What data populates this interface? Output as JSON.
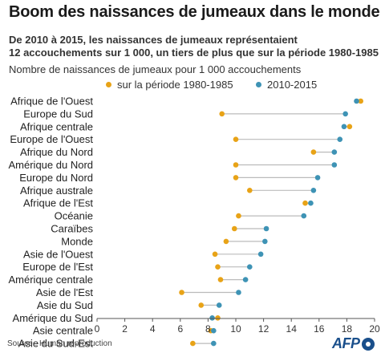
{
  "header": {
    "title": "Boom des naissances de jumeaux dans le monde",
    "subtitle_line1": "De 2010 à 2015, les naissances de jumeaux représentaient",
    "subtitle_line2": "12 accouchements sur 1 000, un tiers de plus que sur la période 1980-1985",
    "axis_caption": "Nombre de naissances de jumeaux pour 1 000 accouchements"
  },
  "legend": {
    "series_1980": "sur la période 1980-1985",
    "series_2010": "2010-2015"
  },
  "colors": {
    "series_1980": "#e8a317",
    "series_2010": "#3e93b5",
    "connector": "#bbbbbb",
    "axis": "#555555",
    "gridline": "#d8d8d8"
  },
  "footer": {
    "source": "Source : Human reproduction",
    "logo": "AFP"
  },
  "chart_data": {
    "type": "dumbbell",
    "title": "Boom des naissances de jumeaux dans le monde",
    "xlabel": "Nombre de naissances de jumeaux pour 1 000 accouchements",
    "xlim": [
      0,
      20
    ],
    "xticks": [
      0,
      2,
      4,
      6,
      8,
      10,
      12,
      14,
      16,
      18,
      20
    ],
    "legend_position": "top",
    "grid": false,
    "categories": [
      "Afrique de l'Ouest",
      "Europe du Sud",
      "Afrique centrale",
      "Europe de l'Ouest",
      "Afrique du Nord",
      "Amérique du Nord",
      "Europe du Nord",
      "Afrique australe",
      "Afrique de l'Est",
      "Océanie",
      "Caraïbes",
      "Monde",
      "Asie de l'Ouest",
      "Europe de l'Est",
      "Amérique centrale",
      "Asie de l'Est",
      "Asie du Sud",
      "Amérique du Sud",
      "Asie centrale",
      "Asie du Sud-Est"
    ],
    "series": [
      {
        "name": "sur la période 1980-1985",
        "values": [
          19.0,
          9.0,
          18.2,
          10.0,
          15.6,
          10.0,
          10.0,
          11.0,
          15.0,
          10.2,
          9.9,
          9.3,
          8.5,
          8.7,
          8.9,
          6.1,
          7.5,
          8.7,
          8.2,
          6.9
        ]
      },
      {
        "name": "2010-2015",
        "values": [
          18.7,
          17.9,
          17.8,
          17.5,
          17.1,
          17.1,
          15.9,
          15.6,
          15.4,
          14.9,
          12.2,
          12.1,
          11.8,
          11.0,
          10.7,
          10.2,
          8.8,
          8.3,
          8.4,
          8.4
        ]
      }
    ]
  }
}
